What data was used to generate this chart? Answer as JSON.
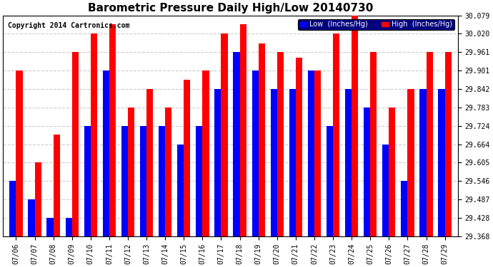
{
  "title": "Barometric Pressure Daily High/Low 20140730",
  "copyright": "Copyright 2014 Cartronics.com",
  "xlabel": "",
  "ylabel": "",
  "background_color": "#ffffff",
  "grid_color": "#cccccc",
  "low_color": "#0000ff",
  "high_color": "#ff0000",
  "ylim_min": 29.368,
  "ylim_max": 30.079,
  "yticks": [
    29.368,
    29.428,
    29.487,
    29.546,
    29.605,
    29.664,
    29.724,
    29.783,
    29.842,
    29.901,
    29.961,
    30.02,
    30.079
  ],
  "dates": [
    "07/06",
    "07/07",
    "07/08",
    "07/09",
    "07/10",
    "07/11",
    "07/12",
    "07/13",
    "07/14",
    "07/15",
    "07/16",
    "07/17",
    "07/18",
    "07/19",
    "07/20",
    "07/21",
    "07/22",
    "07/23",
    "07/24",
    "07/25",
    "07/26",
    "07/27",
    "07/28",
    "07/29"
  ],
  "low_values": [
    29.546,
    29.487,
    29.428,
    29.428,
    29.724,
    29.901,
    29.724,
    29.724,
    29.724,
    29.664,
    29.724,
    29.842,
    29.961,
    29.901,
    29.842,
    29.842,
    29.901,
    29.724,
    29.842,
    29.783,
    29.664,
    29.546,
    29.842,
    29.842
  ],
  "high_values": [
    29.901,
    29.605,
    29.695,
    29.961,
    30.02,
    30.05,
    29.783,
    29.842,
    29.783,
    29.872,
    29.901,
    30.02,
    30.05,
    29.99,
    29.961,
    29.942,
    29.901,
    30.02,
    30.079,
    29.961,
    29.783,
    29.842,
    29.961,
    29.961
  ],
  "legend_low_label": "Low  (Inches/Hg)",
  "legend_high_label": "High  (Inches/Hg)",
  "bar_width": 0.35
}
